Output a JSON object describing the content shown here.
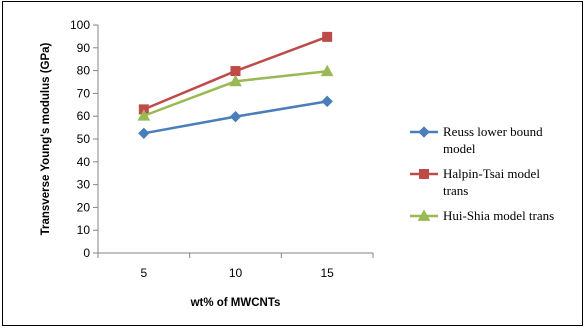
{
  "chart_data": {
    "type": "line",
    "categories": [
      "5",
      "10",
      "15"
    ],
    "ylim": [
      0,
      100
    ],
    "ytick_step": 10,
    "grid": false,
    "xlabel": "wt% of MWCNTs",
    "ylabel": "Transverse Young's modulus (GPa)",
    "legend_position": "right",
    "series": [
      {
        "name_lines": [
          "Reuss lower bound",
          "model"
        ],
        "values": [
          52.5,
          59.8,
          66.5
        ],
        "color": "#4a7ebb",
        "marker": "diamond"
      },
      {
        "name_lines": [
          "Halpin-Tsai model",
          "trans"
        ],
        "values": [
          63.0,
          79.8,
          94.8
        ],
        "color": "#be4b48",
        "marker": "square"
      },
      {
        "name_lines": [
          "Hui-Shia model trans"
        ],
        "values": [
          60.2,
          75.3,
          79.7
        ],
        "color": "#98b954",
        "marker": "triangle"
      }
    ]
  }
}
